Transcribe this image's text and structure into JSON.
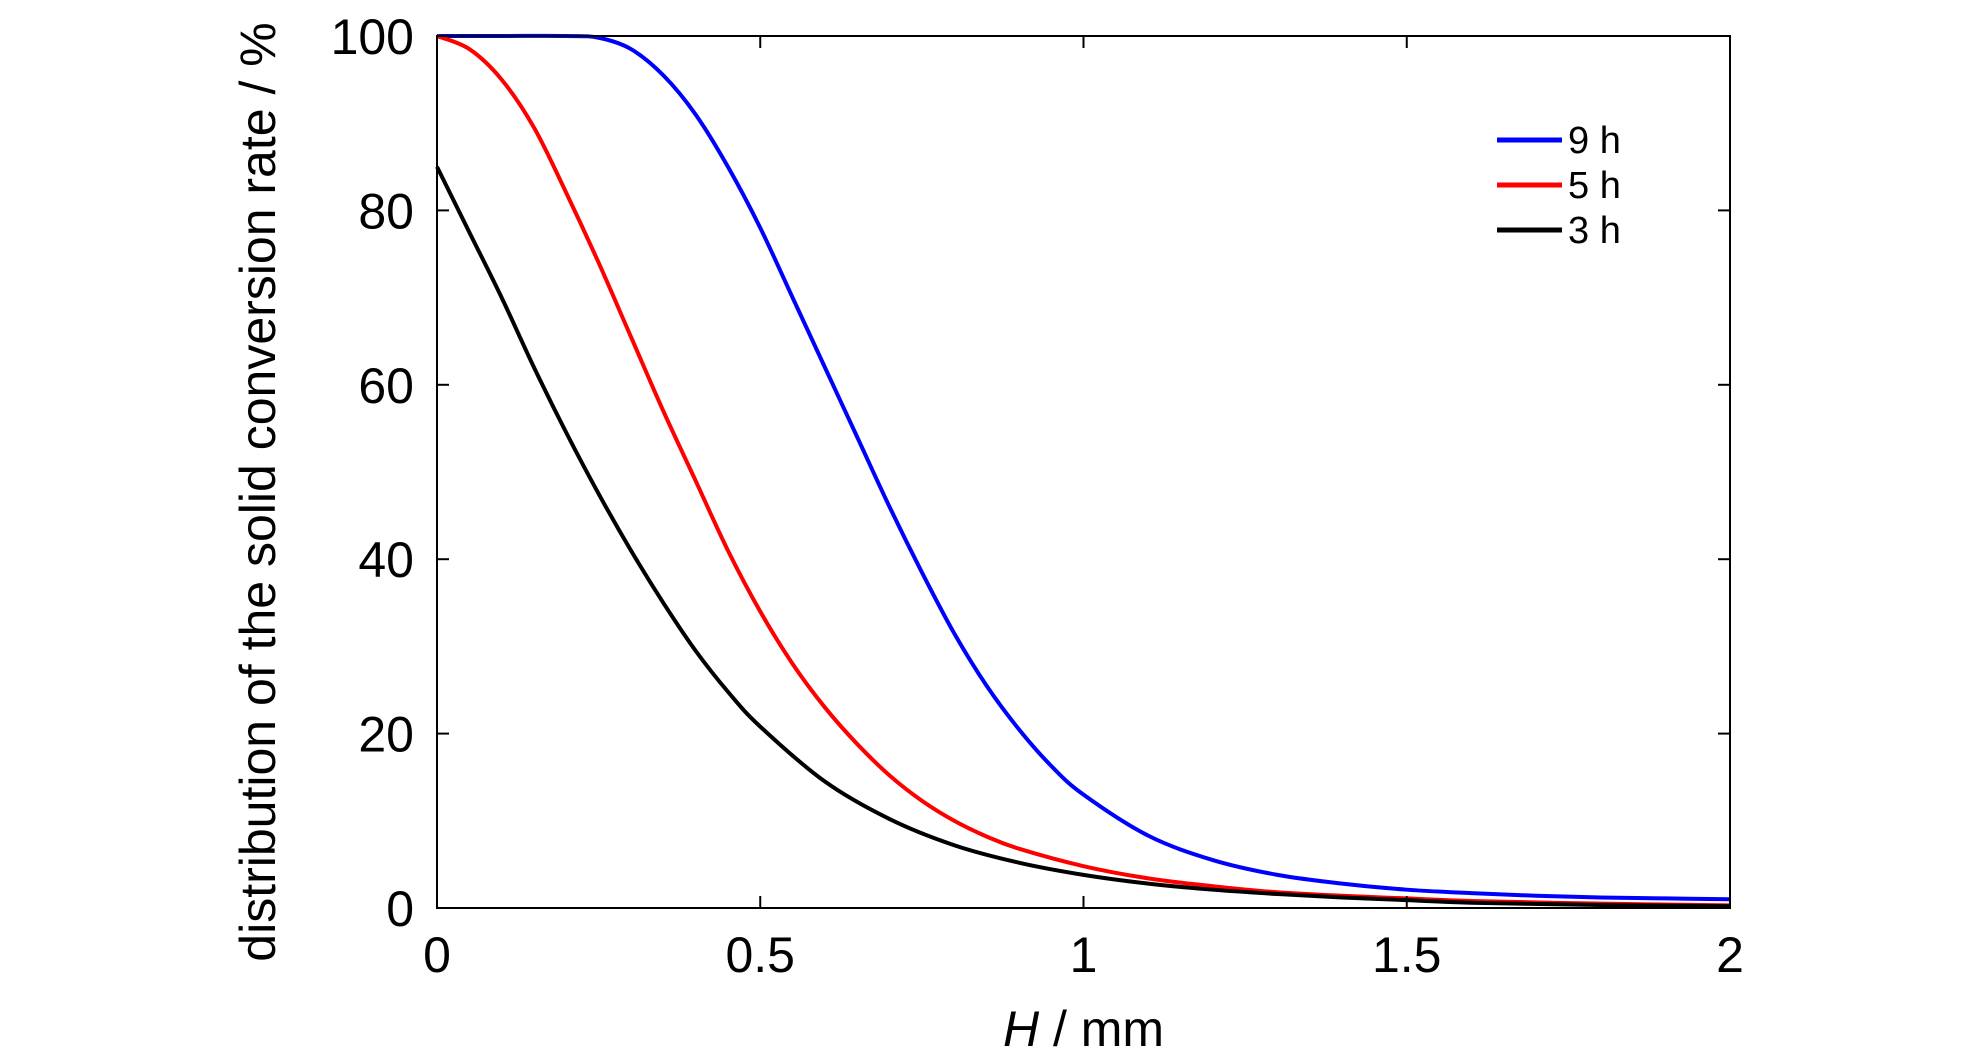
{
  "chart_data": {
    "type": "line",
    "title": "",
    "xlabel_italic": "H",
    "xlabel_rest": " / mm",
    "ylabel": "distribution of the solid conversion rate / %",
    "xlim": [
      0,
      2
    ],
    "ylim": [
      0,
      100
    ],
    "xticks": [
      0,
      0.5,
      1,
      1.5,
      2
    ],
    "xtick_labels": [
      "0",
      "0.5",
      "1",
      "1.5",
      "2"
    ],
    "yticks": [
      0,
      20,
      40,
      60,
      80,
      100
    ],
    "ytick_labels": [
      "0",
      "20",
      "40",
      "60",
      "80",
      "100"
    ],
    "grid": false,
    "legend_position": "top-right",
    "series": [
      {
        "name": "9 h",
        "color": "#0000ff",
        "x": [
          0,
          0.1,
          0.2,
          0.25,
          0.3,
          0.35,
          0.4,
          0.45,
          0.5,
          0.55,
          0.6,
          0.65,
          0.7,
          0.75,
          0.8,
          0.85,
          0.9,
          0.95,
          1.0,
          1.1,
          1.2,
          1.3,
          1.4,
          1.5,
          1.6,
          1.7,
          1.8,
          1.9,
          2.0
        ],
        "y": [
          100,
          100,
          100,
          99.8,
          98.5,
          95.5,
          91,
          85,
          78,
          70,
          62,
          54,
          46,
          38.5,
          31.5,
          25.5,
          20.5,
          16.3,
          13.0,
          8.3,
          5.5,
          3.8,
          2.8,
          2.1,
          1.7,
          1.4,
          1.2,
          1.1,
          1.0
        ]
      },
      {
        "name": "5 h",
        "color": "#ff0000",
        "x": [
          0,
          0.05,
          0.1,
          0.15,
          0.2,
          0.25,
          0.3,
          0.35,
          0.4,
          0.45,
          0.5,
          0.55,
          0.6,
          0.65,
          0.7,
          0.75,
          0.8,
          0.85,
          0.9,
          1.0,
          1.1,
          1.2,
          1.3,
          1.4,
          1.5,
          1.6,
          1.8,
          2.0
        ],
        "y": [
          100,
          98.5,
          95,
          89.5,
          82,
          74,
          65.5,
          57,
          49,
          41,
          34,
          28,
          23,
          18.8,
          15.2,
          12.3,
          10.0,
          8.2,
          6.8,
          4.8,
          3.4,
          2.5,
          1.8,
          1.4,
          1.1,
          0.8,
          0.5,
          0.3
        ]
      },
      {
        "name": "3 h",
        "color": "#000000",
        "x": [
          0,
          0.05,
          0.1,
          0.15,
          0.2,
          0.25,
          0.3,
          0.35,
          0.4,
          0.45,
          0.5,
          0.6,
          0.7,
          0.8,
          0.9,
          1.0,
          1.1,
          1.2,
          1.3,
          1.4,
          1.5,
          1.6,
          1.8,
          2.0
        ],
        "y": [
          85,
          77.5,
          70,
          62,
          54.5,
          47.5,
          41,
          35,
          29.5,
          24.8,
          20.8,
          14.5,
          10.2,
          7.2,
          5.2,
          3.8,
          2.8,
          2.1,
          1.6,
          1.2,
          0.9,
          0.6,
          0.35,
          0.2
        ]
      }
    ]
  }
}
